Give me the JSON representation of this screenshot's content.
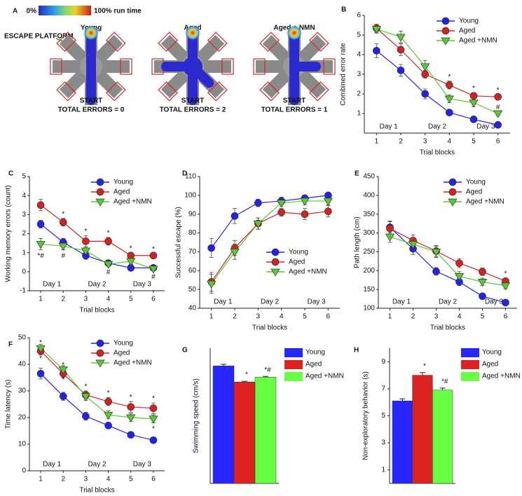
{
  "maze_panel": {
    "panel": "A",
    "colorbar_min": "0%",
    "colorbar_max": "100% run time",
    "escape_label": "ESCAPE PLATFORM",
    "mazes": [
      {
        "title": "Young",
        "start": "START",
        "errors": "TOTAL ERRORS = 0"
      },
      {
        "title": "Aged",
        "start": "START",
        "errors": "TOTAL ERRORS = 2"
      },
      {
        "title": "Aged + NMN",
        "start": "START",
        "errors": "TOTAL ERRORS = 1"
      }
    ]
  },
  "chart_data": [
    {
      "panel": "B",
      "type": "line",
      "xlabel": "Trial blocks",
      "ylabel": "Combined error rate",
      "x": [
        1,
        2,
        3,
        4,
        5,
        6
      ],
      "xlim": [
        0.5,
        6.5
      ],
      "xticks": [
        1,
        2,
        3,
        4,
        5,
        6
      ],
      "ylim": [
        0,
        6
      ],
      "yticks": [
        1,
        2,
        3,
        4,
        5,
        6
      ],
      "days": [
        "Day 1",
        "Day 2",
        "Day 3"
      ],
      "legend": "upper right",
      "series": [
        {
          "name": "Young",
          "color": "#2222e8",
          "marker": "circle",
          "values": [
            4.2,
            3.2,
            2.0,
            1.05,
            0.7,
            0.42
          ],
          "errors": [
            0.35,
            0.3,
            0.25,
            0.15,
            0.15,
            0.08
          ]
        },
        {
          "name": "Aged",
          "color": "#d42222",
          "marker": "circle",
          "values": [
            5.35,
            4.25,
            3.0,
            2.45,
            1.9,
            1.85
          ],
          "errors": [
            0.2,
            0.3,
            0.2,
            0.2,
            0.15,
            0.12
          ],
          "sig": [
            null,
            "*",
            "*",
            "*",
            "*",
            "*"
          ],
          "sig_side": "above"
        },
        {
          "name": "Aged +NMN",
          "color": "#58c932",
          "marker": "triangle",
          "values": [
            5.3,
            4.9,
            3.4,
            1.75,
            1.55,
            1.0
          ],
          "errors": [
            0.2,
            0.3,
            0.3,
            0.2,
            0.2,
            0.1
          ],
          "sig": [
            null,
            null,
            null,
            null,
            null,
            "#"
          ],
          "sig_side": "above"
        }
      ]
    },
    {
      "panel": "C",
      "type": "line",
      "xlabel": "Trial blocks",
      "ylabel": "Working memory errors (count)",
      "x": [
        1,
        2,
        3,
        4,
        5,
        6
      ],
      "xlim": [
        0.5,
        6.5
      ],
      "xticks": [
        1,
        2,
        3,
        4,
        5,
        6
      ],
      "ylim": [
        -1,
        5
      ],
      "yticks": [
        -1,
        0,
        1,
        2,
        3,
        4,
        5
      ],
      "days": [
        "Day 1",
        "Day 2",
        "Day 3"
      ],
      "legend": "upper right",
      "series": [
        {
          "name": "Young",
          "color": "#2222e8",
          "marker": "circle",
          "values": [
            2.5,
            1.55,
            0.85,
            0.45,
            0.2,
            0.2
          ],
          "errors": [
            0.2,
            0.2,
            0.2,
            0.1,
            0.1,
            0.05
          ]
        },
        {
          "name": "Aged",
          "color": "#d42222",
          "marker": "circle",
          "values": [
            3.5,
            2.6,
            1.6,
            1.6,
            0.85,
            0.85
          ],
          "errors": [
            0.3,
            0.2,
            0.3,
            0.2,
            0.15,
            0.1
          ],
          "sig": [
            null,
            "*",
            "*",
            "*",
            "*",
            "*"
          ],
          "sig_side": "above"
        },
        {
          "name": "Aged +NMN",
          "color": "#58c932",
          "marker": "triangle",
          "values": [
            1.45,
            1.35,
            1.1,
            0.4,
            0.55,
            0.15
          ],
          "errors": [
            0.3,
            0.2,
            0.2,
            0.1,
            0.15,
            0.1
          ],
          "sig": [
            "*#",
            "#",
            null,
            "#",
            null,
            "#"
          ],
          "sig_side": "below"
        }
      ]
    },
    {
      "panel": "D",
      "type": "line",
      "xlabel": "Trial blocks",
      "ylabel": "Successful escape (%)",
      "x": [
        1,
        2,
        3,
        4,
        5,
        6
      ],
      "xlim": [
        0.5,
        6.5
      ],
      "xticks": [
        1,
        2,
        3,
        4,
        5,
        6
      ],
      "ylim": [
        40,
        110
      ],
      "yticks": [
        40,
        50,
        60,
        70,
        80,
        90,
        100,
        110
      ],
      "days": [
        "Day 1",
        "Day 2",
        "Day 3"
      ],
      "legend": "lower right",
      "series": [
        {
          "name": "Young",
          "color": "#2222e8",
          "marker": "circle",
          "values": [
            72,
            89,
            96,
            97,
            98.5,
            100
          ],
          "errors": [
            5,
            4,
            2,
            2,
            1,
            0.5
          ]
        },
        {
          "name": "Aged",
          "color": "#d42222",
          "marker": "circle",
          "values": [
            54,
            72,
            85,
            91,
            90,
            91.5
          ],
          "errors": [
            5,
            4,
            3,
            2,
            3,
            3
          ]
        },
        {
          "name": "Aged +NMN",
          "color": "#58c932",
          "marker": "triangle",
          "values": [
            53,
            70,
            85,
            96,
            97,
            97
          ],
          "errors": [
            5,
            4,
            3,
            2,
            2,
            2
          ]
        }
      ]
    },
    {
      "panel": "E",
      "type": "line",
      "xlabel": "Trial blocks",
      "ylabel": "Path length (cm)",
      "x": [
        1,
        2,
        3,
        4,
        5,
        6
      ],
      "xlim": [
        0.5,
        6.5
      ],
      "xticks": [
        1,
        2,
        3,
        4,
        5,
        6
      ],
      "ylim": [
        100,
        450
      ],
      "yticks": [
        100,
        150,
        200,
        250,
        300,
        350,
        400,
        450
      ],
      "days": [
        "Day 1",
        "Day 2",
        "Day 3"
      ],
      "legend": "upper right",
      "series": [
        {
          "name": "Young",
          "color": "#2222e8",
          "marker": "circle",
          "values": [
            315,
            258,
            198,
            170,
            132,
            115
          ],
          "errors": [
            15,
            15,
            10,
            10,
            8,
            6
          ]
        },
        {
          "name": "Aged",
          "color": "#d42222",
          "marker": "circle",
          "values": [
            312,
            280,
            252,
            220,
            197,
            172
          ],
          "errors": [
            20,
            15,
            15,
            12,
            10,
            8
          ],
          "sig": [
            null,
            null,
            null,
            null,
            null,
            "*"
          ],
          "sig_side": "above"
        },
        {
          "name": "Aged +NMN",
          "color": "#58c932",
          "marker": "triangle",
          "values": [
            290,
            270,
            250,
            185,
            170,
            160
          ],
          "errors": [
            15,
            15,
            15,
            12,
            10,
            8
          ]
        }
      ]
    },
    {
      "panel": "F",
      "type": "line",
      "xlabel": "Trial blocks",
      "ylabel": "Time latency (s)",
      "x": [
        1,
        2,
        3,
        4,
        5,
        6
      ],
      "xlim": [
        0.5,
        6.5
      ],
      "xticks": [
        1,
        2,
        3,
        4,
        5,
        6
      ],
      "ylim": [
        0,
        50
      ],
      "yticks": [
        0,
        10,
        20,
        30,
        40,
        50
      ],
      "days": [
        "Day 1",
        "Day 2",
        "Day 3"
      ],
      "legend": "upper right",
      "series": [
        {
          "name": "Young",
          "color": "#2222e8",
          "marker": "circle",
          "values": [
            36.5,
            28,
            20.5,
            17,
            13.5,
            11.5
          ],
          "errors": [
            2,
            1.5,
            1.5,
            1.2,
            1,
            1
          ]
        },
        {
          "name": "Aged",
          "color": "#d42222",
          "marker": "circle",
          "values": [
            45,
            36.5,
            28.5,
            26,
            24,
            23.5
          ],
          "errors": [
            1.5,
            1.5,
            1.5,
            1.5,
            2,
            2
          ],
          "sig": [
            "*",
            "*",
            "*",
            "*",
            "*",
            "*"
          ],
          "sig_side": "above"
        },
        {
          "name": "Aged +NMN",
          "color": "#58c932",
          "marker": "triangle",
          "values": [
            46,
            38,
            28,
            21,
            20,
            19.5
          ],
          "errors": [
            1.5,
            1.5,
            1.5,
            1.5,
            1.5,
            1.5
          ],
          "sig": [
            "*",
            "*",
            null,
            null,
            null,
            "*"
          ],
          "sig_side": "below"
        }
      ]
    },
    {
      "panel": "G",
      "type": "bar",
      "ylabel": "Swimming speed (cm/s)",
      "categories": [
        "Young",
        "Aged",
        "Aged +NMN"
      ],
      "colors": [
        "#2626ff",
        "#dd2222",
        "#66ff44"
      ],
      "values": [
        7.3,
        6.3,
        6.6
      ],
      "errors": [
        0.1,
        0.05,
        0.05
      ],
      "sig": [
        null,
        "*",
        "*#"
      ],
      "ylim": [
        0,
        8.4
      ],
      "legend": "outside right"
    },
    {
      "panel": "H",
      "type": "bar",
      "ylabel": "Non-exploratory behavior (s)",
      "categories": [
        "Young",
        "Aged",
        "Aged +NMN"
      ],
      "colors": [
        "#2626ff",
        "#dd2222",
        "#66ff44"
      ],
      "values": [
        6.1,
        8.0,
        6.9
      ],
      "errors": [
        0.15,
        0.2,
        0.15
      ],
      "sig": [
        null,
        "*",
        "*#"
      ],
      "ylim": [
        0,
        10
      ],
      "yticks": [
        1,
        3,
        5,
        7,
        9
      ],
      "legend": "outside right"
    }
  ]
}
